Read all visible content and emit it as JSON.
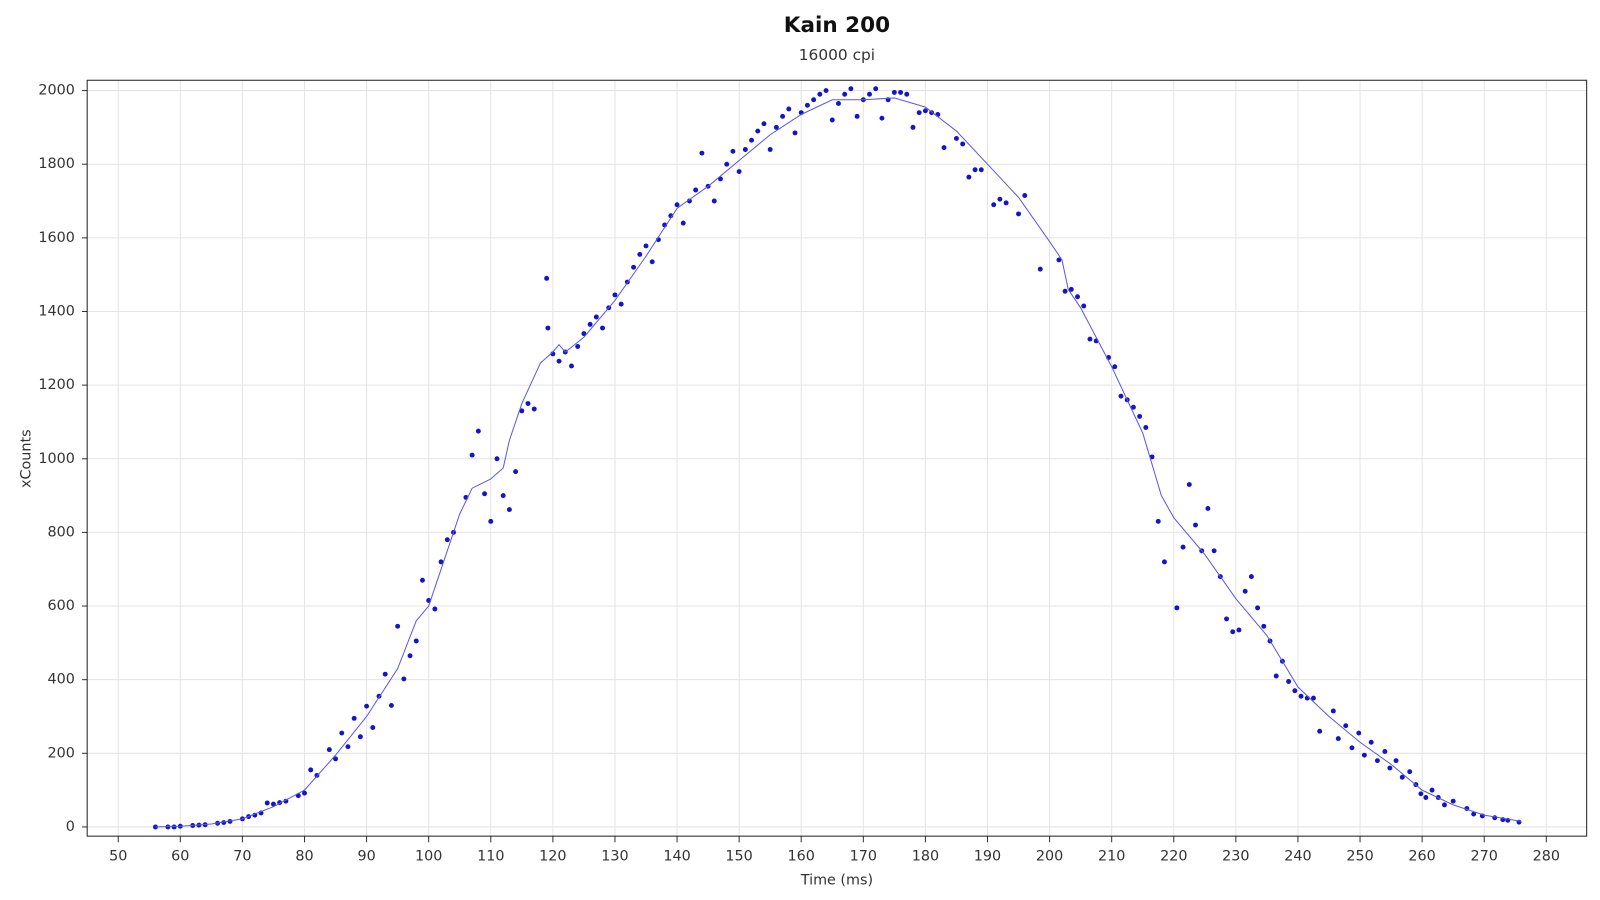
{
  "chart_data": {
    "type": "scatter",
    "title": "Kain 200",
    "subtitle": "16000 cpi",
    "x_label": "Time (ms)",
    "y_label": "xCounts",
    "xlim": [
      45,
      286.5
    ],
    "ylim": [
      -25,
      2028
    ],
    "xticks": [
      50,
      60,
      70,
      80,
      90,
      100,
      110,
      120,
      130,
      140,
      150,
      160,
      170,
      180,
      190,
      200,
      210,
      220,
      230,
      240,
      250,
      260,
      270,
      280
    ],
    "yticks": [
      0,
      200,
      400,
      600,
      800,
      1000,
      1200,
      1400,
      1600,
      1800,
      2000
    ],
    "grid": true,
    "series": [
      {
        "type": "scatter",
        "color": "#1414c8",
        "x": [
          56,
          58,
          59,
          60,
          62,
          63,
          64,
          66,
          67,
          68,
          70,
          71,
          72,
          73,
          74,
          75,
          76,
          77,
          79,
          80,
          81,
          82,
          84,
          85,
          86,
          87,
          88,
          89,
          90,
          91,
          92,
          93,
          94,
          95,
          96,
          97,
          98,
          99,
          100,
          101,
          102,
          103,
          104,
          106,
          107,
          108,
          109,
          110,
          111,
          112,
          113,
          114,
          115,
          116,
          117,
          119,
          119.2,
          120,
          121,
          122,
          123,
          124,
          125,
          126,
          127,
          128,
          129,
          130,
          131,
          132,
          133,
          134,
          135,
          136,
          137,
          138,
          139,
          140,
          141,
          142,
          143,
          144,
          145,
          146,
          147,
          148,
          149,
          150,
          151,
          152,
          153,
          154,
          155,
          156,
          157,
          158,
          159,
          160,
          161,
          162,
          163,
          164,
          165,
          166,
          167,
          168,
          169,
          170,
          171,
          172,
          173,
          174,
          175,
          176,
          177,
          178,
          179,
          180,
          181,
          182,
          183,
          185,
          186,
          187,
          188,
          189,
          191,
          192,
          193,
          195,
          196,
          198.5,
          201.5,
          202.5,
          203.5,
          204.5,
          205.5,
          206.5,
          207.5,
          209.5,
          210.5,
          211.5,
          212.5,
          213.5,
          214.5,
          215.5,
          216.5,
          217.5,
          218.5,
          220.5,
          221.5,
          222.5,
          223.5,
          224.5,
          225.5,
          226.5,
          227.5,
          228.5,
          229.5,
          230.5,
          231.5,
          232.5,
          233.5,
          234.5,
          235.5,
          236.5,
          237.5,
          238.5,
          239.5,
          240.5,
          241.5,
          242.5,
          243.5,
          245.7,
          246.5,
          247.7,
          248.7,
          249.8,
          250.7,
          251.8,
          252.8,
          254,
          254.8,
          255.8,
          256.8,
          258,
          259,
          259.8,
          260.6,
          261.6,
          262.6,
          263.6,
          265,
          267.2,
          268.3,
          269.7,
          271.7,
          273,
          273.8,
          275.6
        ],
        "values": [
          0,
          0,
          0,
          2,
          4,
          5,
          6,
          10,
          12,
          15,
          22,
          28,
          32,
          38,
          65,
          62,
          66,
          70,
          85,
          92,
          155,
          140,
          210,
          185,
          255,
          218,
          295,
          245,
          328,
          270,
          355,
          415,
          330,
          545,
          402,
          465,
          505,
          670,
          615,
          592,
          720,
          780,
          800,
          895,
          1010,
          1075,
          905,
          830,
          1000,
          900,
          862,
          965,
          1130,
          1150,
          1135,
          1490,
          1355,
          1285,
          1265,
          1290,
          1252,
          1305,
          1340,
          1365,
          1385,
          1355,
          1410,
          1445,
          1420,
          1480,
          1520,
          1555,
          1578,
          1535,
          1595,
          1635,
          1660,
          1690,
          1640,
          1700,
          1730,
          1830,
          1740,
          1700,
          1760,
          1800,
          1835,
          1780,
          1840,
          1865,
          1890,
          1910,
          1840,
          1900,
          1930,
          1950,
          1885,
          1940,
          1960,
          1975,
          1990,
          2000,
          1920,
          1965,
          1990,
          2005,
          1930,
          1975,
          1990,
          2005,
          1925,
          1975,
          1995,
          1995,
          1990,
          1900,
          1940,
          1945,
          1940,
          1935,
          1845,
          1870,
          1855,
          1765,
          1785,
          1785,
          1690,
          1705,
          1695,
          1665,
          1715,
          1515,
          1540,
          1455,
          1460,
          1440,
          1415,
          1325,
          1320,
          1275,
          1250,
          1170,
          1160,
          1140,
          1115,
          1085,
          1005,
          830,
          720,
          595,
          760,
          930,
          820,
          750,
          865,
          750,
          680,
          565,
          530,
          535,
          640,
          680,
          595,
          545,
          505,
          410,
          450,
          395,
          370,
          355,
          350,
          350,
          260,
          315,
          240,
          275,
          215,
          255,
          195,
          230,
          180,
          205,
          160,
          180,
          135,
          150,
          115,
          90,
          80,
          100,
          80,
          60,
          70,
          50,
          35,
          30,
          25,
          20,
          18,
          13
        ]
      },
      {
        "type": "line",
        "color": "#5a5ae6",
        "x": [
          56,
          60,
          65,
          70,
          75,
          80,
          85,
          90,
          95,
          98,
          100,
          102,
          105,
          107,
          110,
          112,
          113,
          115,
          118,
          120,
          121,
          122,
          125,
          130,
          135,
          140,
          145,
          150,
          155,
          160,
          165,
          170,
          175,
          180,
          185,
          190,
          195,
          200,
          202,
          203,
          205,
          210,
          215,
          218,
          220,
          225,
          230,
          235,
          240,
          245,
          250,
          255,
          260,
          265,
          270,
          276
        ],
        "values": [
          0,
          2,
          8,
          22,
          55,
          100,
          195,
          300,
          430,
          560,
          600,
          700,
          850,
          920,
          945,
          975,
          1050,
          1150,
          1260,
          1290,
          1310,
          1290,
          1330,
          1430,
          1550,
          1680,
          1740,
          1810,
          1880,
          1935,
          1975,
          1975,
          1980,
          1955,
          1890,
          1800,
          1710,
          1590,
          1540,
          1460,
          1410,
          1250,
          1070,
          900,
          840,
          740,
          620,
          520,
          380,
          300,
          230,
          170,
          100,
          60,
          32,
          15
        ]
      }
    ]
  }
}
